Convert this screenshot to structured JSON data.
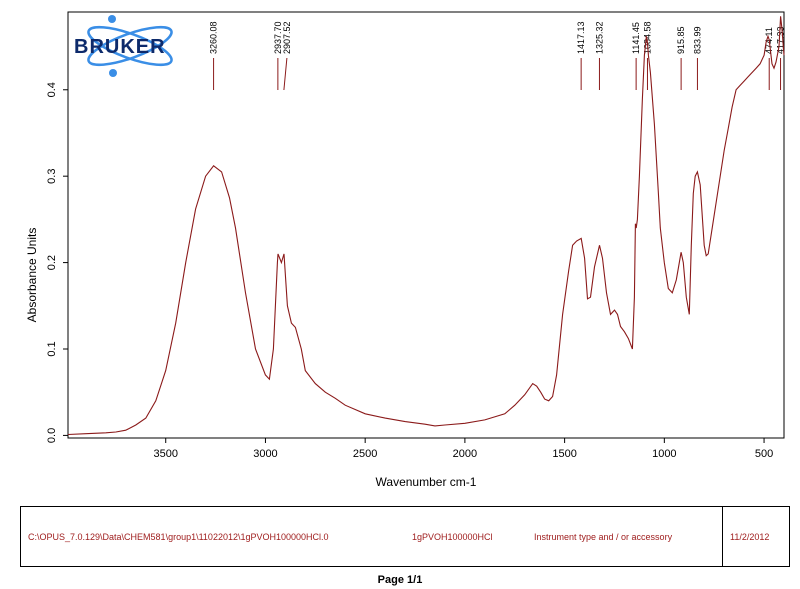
{
  "brand": {
    "name": "BRUKER"
  },
  "chart_data": {
    "type": "line",
    "xlabel": "Wavenumber cm-1",
    "ylabel": "Absorbance Units",
    "xlim": [
      3990,
      400
    ],
    "ylim": [
      -0.003,
      0.49
    ],
    "x_ticks": [
      "3500",
      "3000",
      "2500",
      "2000",
      "1500",
      "1000",
      "500"
    ],
    "y_ticks": [
      "0.0",
      "0.1",
      "0.2",
      "0.3",
      "0.4"
    ],
    "grid": false,
    "line_color": "#8b1a1a",
    "peak_labels": [
      "3260.08",
      "2937.70",
      "2907.52",
      "1417.13",
      "1325.32",
      "1141.45",
      "1084.58",
      "915.85",
      "833.99",
      "474.11",
      "417.33"
    ],
    "peaks": [
      3260.08,
      2937.7,
      2907.52,
      1417.13,
      1325.32,
      1141.45,
      1084.58,
      915.85,
      833.99,
      474.11,
      417.33
    ],
    "series": [
      {
        "x": [
          3990,
          3900,
          3800,
          3750,
          3700,
          3650,
          3600,
          3550,
          3500,
          3450,
          3400,
          3350,
          3300,
          3260,
          3220,
          3180,
          3150,
          3100,
          3050,
          3000,
          2980,
          2960,
          2940,
          2937,
          2920,
          2907,
          2890,
          2870,
          2850,
          2820,
          2800,
          2750,
          2700,
          2650,
          2600,
          2500,
          2400,
          2300,
          2200,
          2150,
          2100,
          2000,
          1900,
          1800,
          1750,
          1700,
          1660,
          1640,
          1620,
          1600,
          1580,
          1560,
          1540,
          1510,
          1480,
          1460,
          1440,
          1417,
          1400,
          1385,
          1370,
          1350,
          1325,
          1310,
          1290,
          1270,
          1250,
          1235,
          1220,
          1200,
          1180,
          1160,
          1150,
          1145,
          1141,
          1135,
          1125,
          1110,
          1100,
          1090,
          1085,
          1080,
          1070,
          1060,
          1050,
          1040,
          1030,
          1020,
          1000,
          980,
          960,
          940,
          925,
          916,
          905,
          890,
          875,
          865,
          855,
          845,
          834,
          820,
          800,
          790,
          780,
          760,
          740,
          720,
          700,
          680,
          660,
          640,
          620,
          600,
          580,
          560,
          540,
          520,
          500,
          490,
          480,
          474,
          460,
          450,
          440,
          425,
          417,
          410,
          400
        ],
        "y": [
          0.001,
          0.002,
          0.003,
          0.004,
          0.006,
          0.012,
          0.02,
          0.04,
          0.075,
          0.13,
          0.2,
          0.262,
          0.3,
          0.312,
          0.305,
          0.275,
          0.24,
          0.165,
          0.1,
          0.07,
          0.065,
          0.1,
          0.2,
          0.21,
          0.2,
          0.21,
          0.15,
          0.13,
          0.125,
          0.1,
          0.075,
          0.06,
          0.05,
          0.043,
          0.035,
          0.025,
          0.02,
          0.016,
          0.013,
          0.011,
          0.012,
          0.014,
          0.018,
          0.025,
          0.035,
          0.047,
          0.06,
          0.057,
          0.05,
          0.042,
          0.04,
          0.045,
          0.07,
          0.14,
          0.19,
          0.22,
          0.225,
          0.228,
          0.205,
          0.158,
          0.16,
          0.195,
          0.22,
          0.205,
          0.165,
          0.14,
          0.145,
          0.14,
          0.126,
          0.12,
          0.112,
          0.1,
          0.16,
          0.245,
          0.24,
          0.25,
          0.3,
          0.39,
          0.44,
          0.462,
          0.455,
          0.44,
          0.42,
          0.39,
          0.36,
          0.32,
          0.28,
          0.24,
          0.2,
          0.17,
          0.165,
          0.18,
          0.2,
          0.212,
          0.2,
          0.16,
          0.14,
          0.22,
          0.28,
          0.3,
          0.305,
          0.29,
          0.22,
          0.208,
          0.21,
          0.24,
          0.27,
          0.3,
          0.33,
          0.355,
          0.38,
          0.4,
          0.405,
          0.41,
          0.415,
          0.42,
          0.425,
          0.43,
          0.44,
          0.455,
          0.462,
          0.458,
          0.43,
          0.425,
          0.432,
          0.45,
          0.485,
          0.47,
          0.44
        ]
      }
    ]
  },
  "footer": {
    "file_path": "C:\\OPUS_7.0.129\\Data\\CHEM581\\group1\\11022012\\1gPVOH100000HCl.0",
    "sample_name": "1gPVOH100000HCl",
    "instrument": "Instrument type and / or accessory",
    "date": "11/2/2012"
  },
  "page_label": "Page 1/1"
}
